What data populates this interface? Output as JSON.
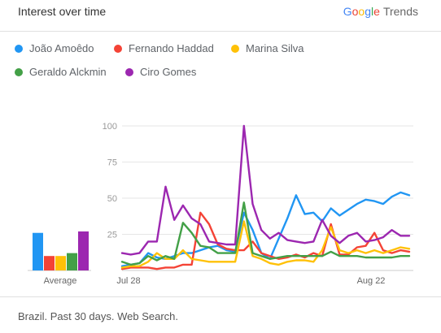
{
  "header": {
    "title": "Interest over time",
    "brand_letters": [
      "G",
      "o",
      "o",
      "g",
      "l",
      "e"
    ],
    "brand_suffix": "Trends"
  },
  "footer": {
    "text": "Brazil. Past 30 days. Web Search."
  },
  "chart_data": {
    "type": "line",
    "x_tick_labels": [
      "Jul 28",
      "Aug 22"
    ],
    "ylim": [
      0,
      100
    ],
    "y_ticks": [
      25,
      50,
      75,
      100
    ],
    "grid": true,
    "legend_placement": "top-left",
    "average_label": "Average",
    "series": [
      {
        "name": "João Amoêdo",
        "color": "#2196F3",
        "average": 26,
        "values": [
          3,
          4,
          5,
          12,
          9,
          8,
          10,
          12,
          12,
          14,
          16,
          17,
          14,
          13,
          40,
          28,
          12,
          8,
          22,
          36,
          52,
          39,
          40,
          34,
          43,
          38,
          42,
          46,
          49,
          48,
          46,
          51,
          54,
          52
        ]
      },
      {
        "name": "Fernando Haddad",
        "color": "#F44336",
        "average": 10,
        "values": [
          1,
          2,
          2,
          2,
          1,
          2,
          2,
          4,
          4,
          40,
          32,
          18,
          15,
          14,
          14,
          20,
          12,
          10,
          8,
          9,
          11,
          9,
          12,
          10,
          32,
          11,
          11,
          16,
          17,
          26,
          14,
          12,
          14,
          13
        ]
      },
      {
        "name": "Marina Silva",
        "color": "#FFC107",
        "average": 10,
        "values": [
          2,
          3,
          3,
          6,
          12,
          8,
          8,
          14,
          8,
          7,
          6,
          6,
          6,
          6,
          34,
          10,
          8,
          5,
          4,
          6,
          7,
          7,
          6,
          14,
          30,
          14,
          12,
          14,
          12,
          14,
          12,
          14,
          16,
          15
        ]
      },
      {
        "name": "Geraldo Alckmin",
        "color": "#43A047",
        "average": 12,
        "values": [
          6,
          4,
          5,
          10,
          7,
          10,
          8,
          33,
          26,
          17,
          16,
          12,
          12,
          12,
          47,
          12,
          10,
          8,
          9,
          10,
          10,
          10,
          10,
          10,
          13,
          10,
          10,
          10,
          9,
          9,
          9,
          9,
          10,
          10
        ]
      },
      {
        "name": "Ciro Gomes",
        "color": "#9C27B0",
        "average": 27,
        "values": [
          12,
          11,
          12,
          20,
          20,
          58,
          35,
          45,
          36,
          32,
          20,
          19,
          18,
          18,
          100,
          46,
          28,
          22,
          26,
          21,
          20,
          19,
          20,
          35,
          24,
          19,
          24,
          26,
          20,
          21,
          23,
          28,
          24,
          24
        ]
      }
    ]
  }
}
